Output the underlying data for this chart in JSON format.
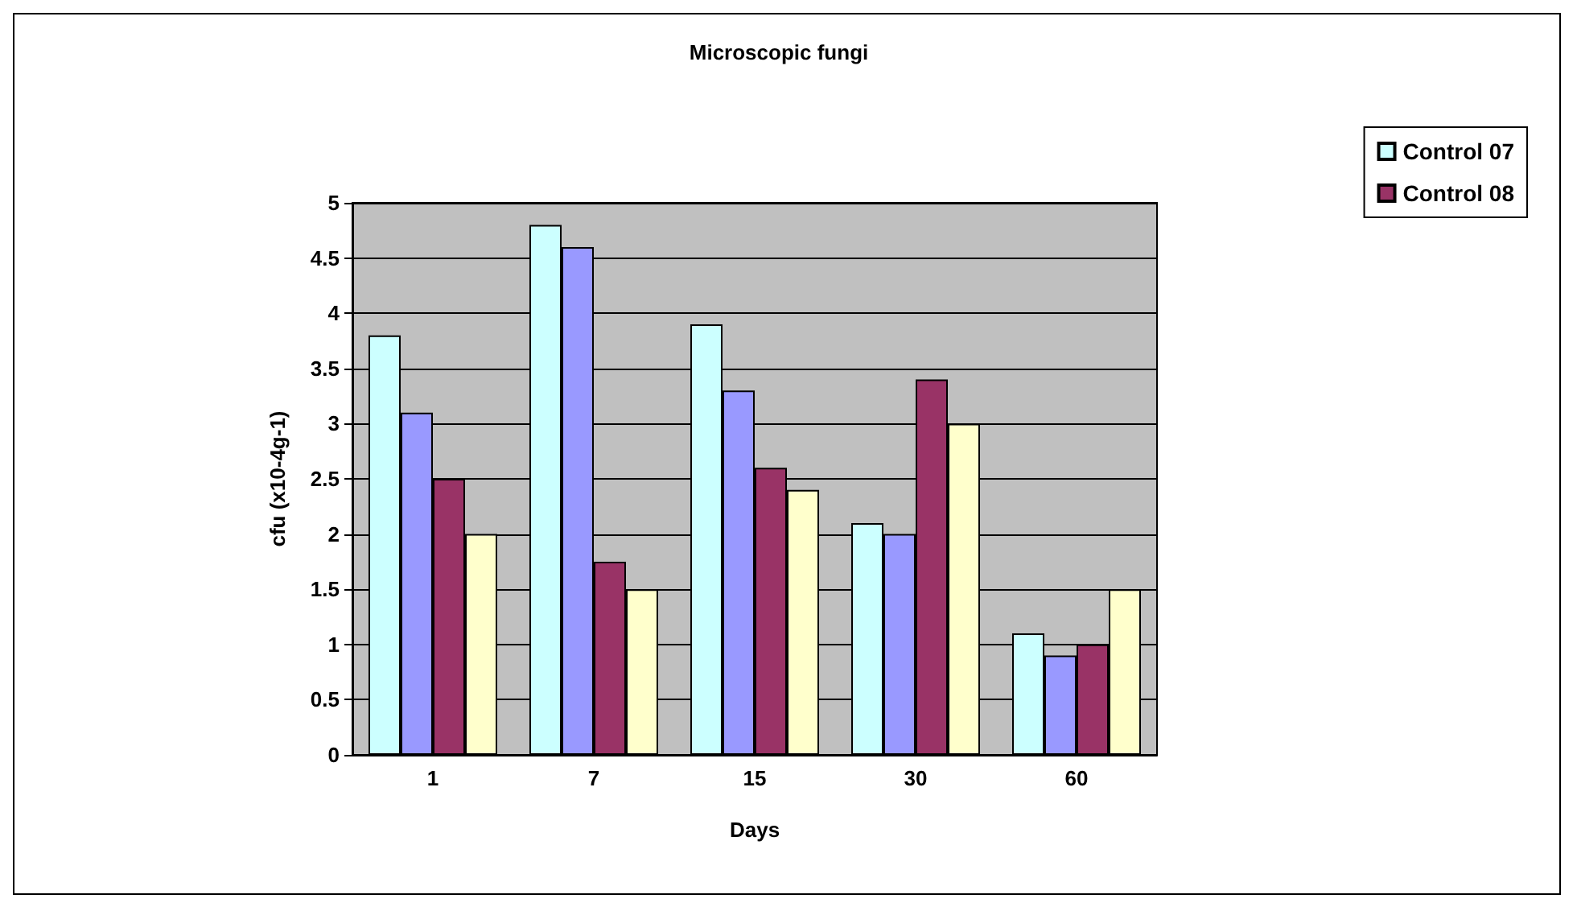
{
  "chart_data": {
    "type": "bar",
    "title": "Microscopic fungi",
    "xlabel": "Days",
    "ylabel": "cfu (x10-4g-1)",
    "categories": [
      "1",
      "7",
      "15",
      "30",
      "60"
    ],
    "series": [
      {
        "name": "Control 07",
        "color": "#ccffff",
        "values": [
          3.8,
          4.8,
          3.9,
          2.1,
          1.1
        ]
      },
      {
        "color": "#9999ff",
        "values": [
          3.1,
          4.6,
          3.3,
          2.0,
          0.9
        ]
      },
      {
        "name": "Control 08",
        "color": "#993366",
        "values": [
          2.5,
          1.75,
          2.6,
          3.4,
          1.0
        ]
      },
      {
        "color": "#ffffcc",
        "values": [
          2.0,
          1.5,
          2.4,
          3.0,
          1.5
        ]
      }
    ],
    "ylim": [
      0,
      5
    ],
    "yticks": [
      0,
      0.5,
      1,
      1.5,
      2,
      2.5,
      3,
      3.5,
      4,
      4.5,
      5
    ],
    "grid": "y",
    "legend": "right"
  }
}
